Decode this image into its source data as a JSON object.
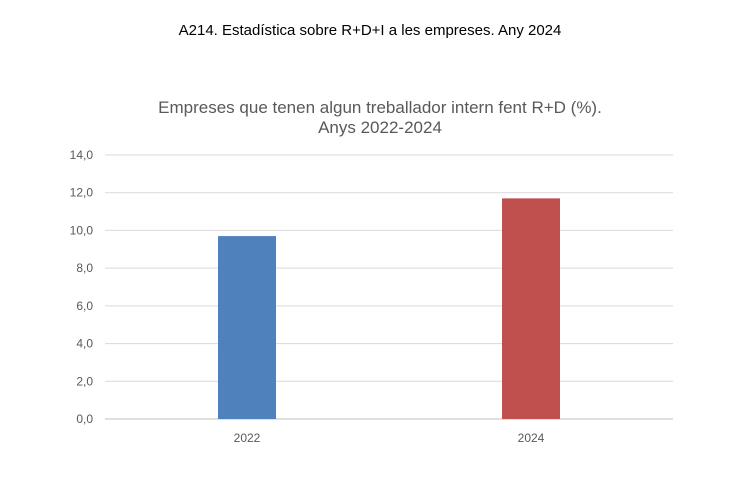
{
  "header": {
    "title": "A214. Estadística sobre R+D+I a les empreses. Any 2024"
  },
  "chart_data": {
    "type": "bar",
    "title_line1": "Empreses que tenen algun treballador intern fent R+D (%).",
    "title_line2": "Anys 2022-2024",
    "categories": [
      "2022",
      "2024"
    ],
    "values": [
      9.7,
      11.7
    ],
    "colors": [
      "#4f81bd",
      "#c0504d"
    ],
    "ylim": [
      0,
      14
    ],
    "yticks": [
      "0,0",
      "2,0",
      "4,0",
      "6,0",
      "8,0",
      "10,0",
      "12,0",
      "14,0"
    ],
    "grid": true,
    "xlabel": "",
    "ylabel": ""
  }
}
